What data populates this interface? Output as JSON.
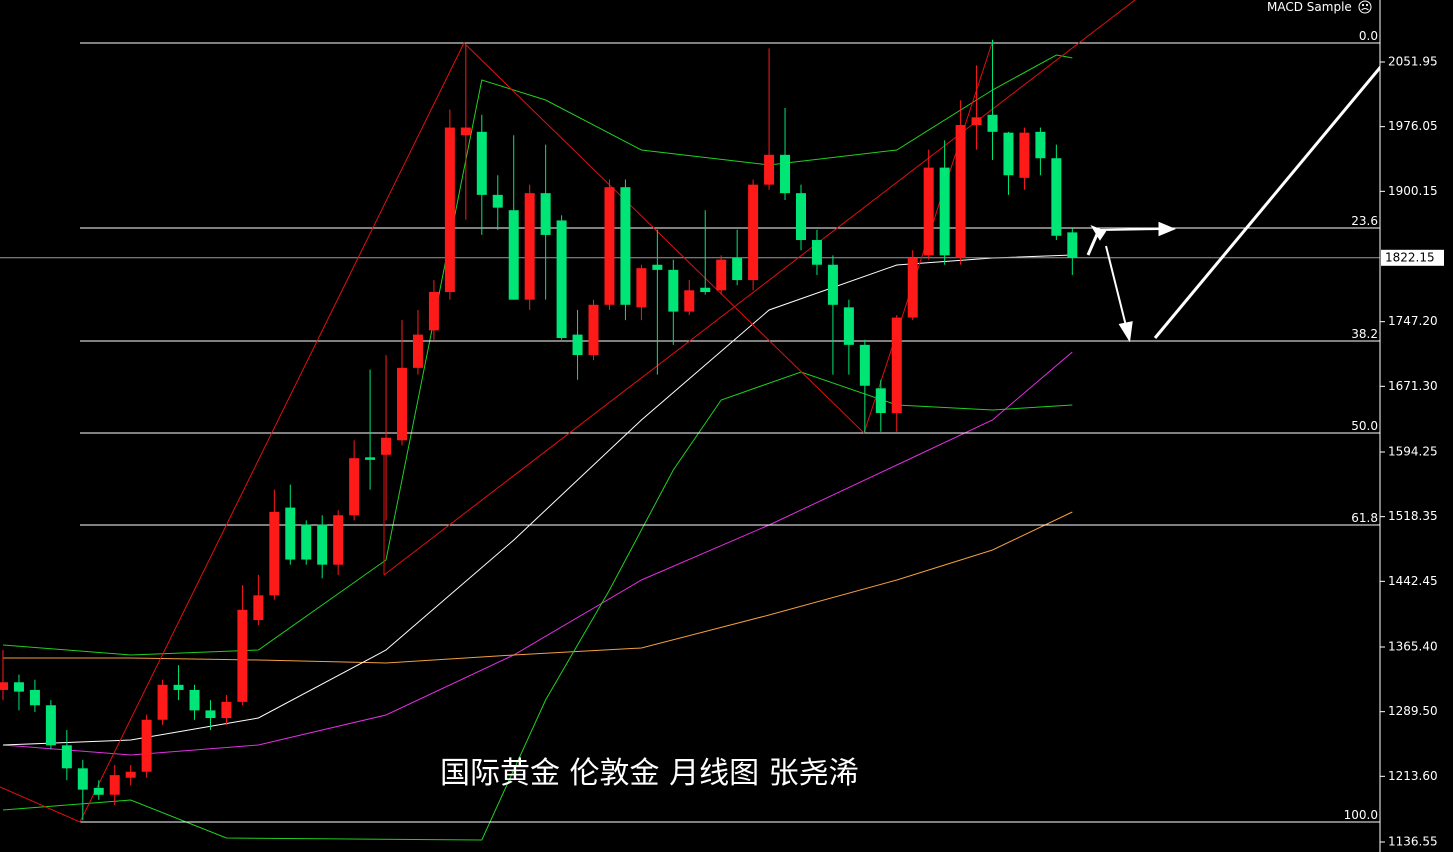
{
  "chart_data": {
    "type": "candlestick",
    "annotation": "国际黄金 伦敦金 月线图 张尧浠",
    "indicator_label": "MACD Sample",
    "up_color": "#ff1a1a",
    "down_color": "#00e676",
    "ylim": [
      1124.8,
      2124.7
    ],
    "yticks": [
      2051.95,
      {
        "value": 1976.05,
        "label": "1976.05"
      },
      1900.15,
      {
        "value": 1747.2,
        "label": "1747.20"
      },
      {
        "value": 1671.3,
        "label": "1671.30"
      },
      1594.25,
      1518.35,
      1442.45,
      {
        "value": 1365.4,
        "label": "1365.40"
      },
      {
        "value": 1289.5,
        "label": "1289.50"
      },
      {
        "value": 1213.6,
        "label": "1213.60"
      },
      1136.55
    ],
    "current_price": 1822.15,
    "fib_levels": [
      {
        "label": "0.0",
        "price": 2074.3
      },
      {
        "label": "23.6",
        "price": 1857.1
      },
      {
        "label": "38.2",
        "price": 1724.5
      },
      {
        "label": "50.0",
        "price": 1616.6
      },
      {
        "label": "61.8",
        "price": 1508.6
      },
      {
        "label": "100.0",
        "price": 1160.0
      }
    ],
    "open": [
      1315,
      1324,
      1315,
      1297,
      1250,
      1223,
      1200,
      1192,
      1212,
      1219,
      1280,
      1321,
      1315,
      1291,
      1282,
      1301,
      1397,
      1426,
      1529,
      1509,
      1509,
      1462,
      1520,
      1588,
      1591,
      1608,
      1693,
      1737,
      1782,
      1966,
      1970,
      1896,
      1878,
      1773,
      1898,
      1866,
      1732,
      1708,
      1767,
      1905,
      1764,
      1814,
      1808,
      1759,
      1787,
      1784,
      1822,
      1796,
      1908,
      1943,
      1898,
      1843,
      1814,
      1764,
      1720,
      1669,
      1640,
      1752,
      1825,
      1928,
      1822,
      1978,
      1990,
      1969,
      1916,
      1970,
      1939,
      1852
    ],
    "high": [
      1362,
      1333,
      1327,
      1303,
      1268,
      1233,
      1209,
      1227,
      1227,
      1286,
      1327,
      1344,
      1321,
      1303,
      1309,
      1438,
      1450,
      1550,
      1556,
      1514,
      1520,
      1526,
      1608,
      1691,
      1708,
      1749,
      1761,
      1796,
      1996,
      2072,
      1990,
      1919,
      1966,
      1908,
      1955,
      1872,
      1761,
      1773,
      1914,
      1914,
      1814,
      1855,
      1820,
      1796,
      1878,
      1825,
      1855,
      1914,
      2068,
      1998,
      1908,
      1855,
      1825,
      1773,
      1726,
      1679,
      1755,
      1831,
      1949,
      1960,
      2007,
      2048,
      2078,
      1970,
      1975,
      1975,
      1955,
      1857
    ],
    "low": [
      1303,
      1291,
      1289,
      1245,
      1209,
      1162,
      1186,
      1180,
      1203,
      1212,
      1274,
      1303,
      1280,
      1268,
      1274,
      1297,
      1391,
      1421,
      1462,
      1462,
      1446,
      1450,
      1514,
      1550,
      1514,
      1602,
      1685,
      1726,
      1773,
      1867,
      1849,
      1855,
      1773,
      1761,
      1773,
      1726,
      1679,
      1702,
      1761,
      1749,
      1749,
      1685,
      1720,
      1755,
      1779,
      1779,
      1790,
      1784,
      1902,
      1890,
      1831,
      1802,
      1685,
      1685,
      1617,
      1618,
      1618,
      1749,
      1820,
      1814,
      1814,
      1949,
      1937,
      1896,
      1902,
      1919,
      1843,
      1802
    ],
    "close": [
      1324,
      1313,
      1297,
      1250,
      1223,
      1198,
      1192,
      1215,
      1219,
      1280,
      1321,
      1315,
      1291,
      1282,
      1301,
      1409,
      1426,
      1524,
      1468,
      1468,
      1462,
      1520,
      1587,
      1585,
      1611,
      1693,
      1732,
      1782,
      1975,
      1975,
      1896,
      1881,
      1773,
      1898,
      1849,
      1728,
      1708,
      1767,
      1905,
      1767,
      1810,
      1808,
      1759,
      1784,
      1782,
      1820,
      1796,
      1908,
      1943,
      1898,
      1843,
      1814,
      1767,
      1720,
      1672,
      1640,
      1752,
      1822,
      1928,
      1825,
      1978,
      1987,
      1970,
      1919,
      1969,
      1939,
      1848,
      1822.15
    ],
    "lines": [
      {
        "color": "#e030e0",
        "x": [
          0,
          8,
          16,
          24,
          32,
          40,
          48,
          56,
          62,
          67
        ],
        "values": [
          1250.4,
          1238.6,
          1250.4,
          1285.6,
          1356.0,
          1444.0,
          1508.6,
          1579.0,
          1631.8,
          1711.6
        ]
      },
      {
        "color": "#f0a040",
        "x": [
          0,
          8,
          16,
          24,
          32,
          40,
          48,
          56,
          62,
          67
        ],
        "values": [
          1352.5,
          1352.5,
          1350.1,
          1346.6,
          1356.0,
          1364.2,
          1402.9,
          1444.0,
          1479.2,
          1523.8
        ]
      },
      {
        "color": "#ffffff",
        "x": [
          0,
          8,
          16,
          24,
          32,
          40,
          48,
          56,
          62,
          67
        ],
        "values": [
          1250.4,
          1256.2,
          1282.1,
          1361.9,
          1490.9,
          1631.8,
          1760.9,
          1813.7,
          1821.9,
          1825.4
        ]
      },
      {
        "color": "#20d020",
        "x": [
          0,
          8,
          16,
          24,
          30,
          34,
          40,
          48,
          56,
          62,
          66,
          67
        ],
        "values": [
          1367.7,
          1356.0,
          1361.9,
          1467.5,
          2030.8,
          2007.3,
          1948.7,
          1931.1,
          1948.7,
          2019.1,
          2060.2,
          2056.7
        ]
      },
      {
        "color": "#20d020",
        "x": [
          0,
          8,
          14,
          30,
          34,
          38,
          42,
          45,
          50,
          56,
          62,
          67
        ],
        "values": [
          1174.1,
          1185.8,
          1141.2,
          1138.9,
          1303.2,
          1432.3,
          1573.1,
          1655.3,
          1688.1,
          1649.4,
          1643.5,
          1649.4
        ]
      }
    ]
  }
}
